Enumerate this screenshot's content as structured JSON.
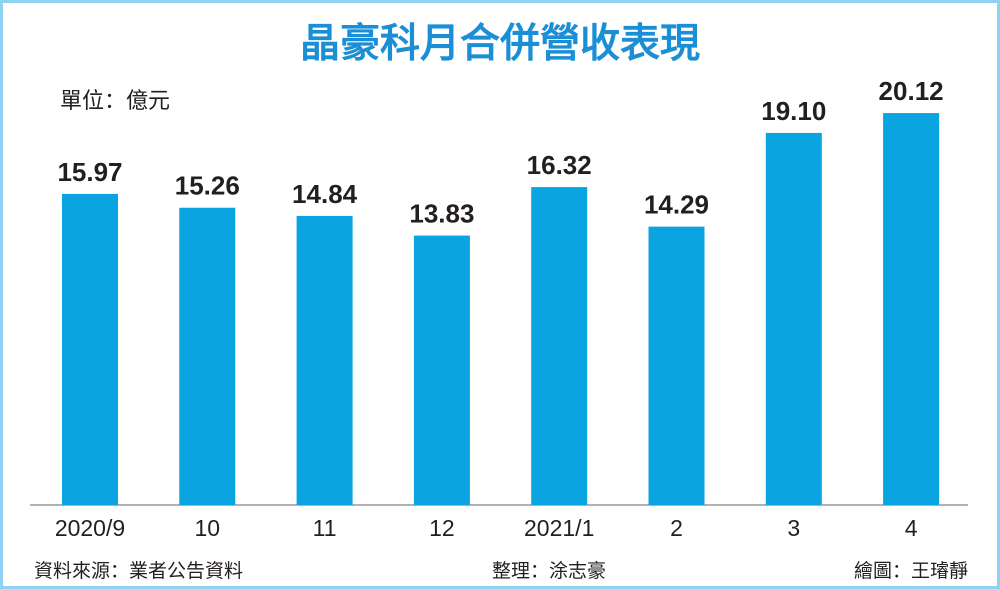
{
  "chart_data": {
    "type": "bar",
    "title": "晶豪科月合併營收表現",
    "unit": "單位：億元",
    "categories": [
      "2020/9",
      "10",
      "11",
      "12",
      "2021/1",
      "2",
      "3",
      "4"
    ],
    "values": [
      15.97,
      15.26,
      14.84,
      13.83,
      16.32,
      14.29,
      19.1,
      20.12
    ],
    "value_labels": [
      "15.97",
      "15.26",
      "14.84",
      "13.83",
      "16.32",
      "14.29",
      "19.10",
      "20.12"
    ],
    "color": "#0aa5e1",
    "source": "資料來源：業者公告資料",
    "compiled_by": "整理：涂志豪",
    "drawn_by": "繪圖：王璿靜"
  }
}
